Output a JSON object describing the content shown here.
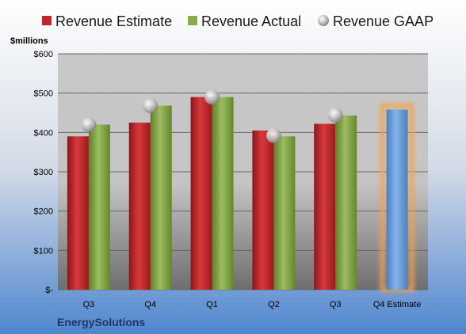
{
  "chart_data": {
    "type": "bar",
    "unit_label": "$millions",
    "company": "EnergySolutions",
    "categories": [
      "Q3",
      "Q4",
      "Q1",
      "Q2",
      "Q3",
      "Q4 Estimate"
    ],
    "series": [
      {
        "name": "Revenue Estimate",
        "kind": "bar",
        "color": "#c0262a",
        "values": [
          390,
          425,
          490,
          405,
          422,
          null
        ]
      },
      {
        "name": "Revenue Actual",
        "kind": "bar",
        "color": "#8aab4c",
        "values": [
          420,
          468,
          490,
          390,
          443,
          null
        ]
      },
      {
        "name": "Revenue GAAP",
        "kind": "marker",
        "color": "#b0b0b0",
        "values": [
          420,
          468,
          490,
          392,
          444,
          null
        ]
      },
      {
        "name": "Q4 Estimate",
        "kind": "bar",
        "color": "#6f9fd8",
        "highlight": "#f5a24a",
        "values": [
          null,
          null,
          null,
          null,
          null,
          458
        ]
      }
    ],
    "ylim": [
      0,
      600
    ],
    "yticks": [
      {
        "value": 0,
        "label": "$-"
      },
      {
        "value": 100,
        "label": "$100"
      },
      {
        "value": 200,
        "label": "$200"
      },
      {
        "value": 300,
        "label": "$300"
      },
      {
        "value": 400,
        "label": "$400"
      },
      {
        "value": 500,
        "label": "$500"
      },
      {
        "value": 600,
        "label": "$600"
      }
    ],
    "grid": true,
    "legend_position": "top"
  }
}
